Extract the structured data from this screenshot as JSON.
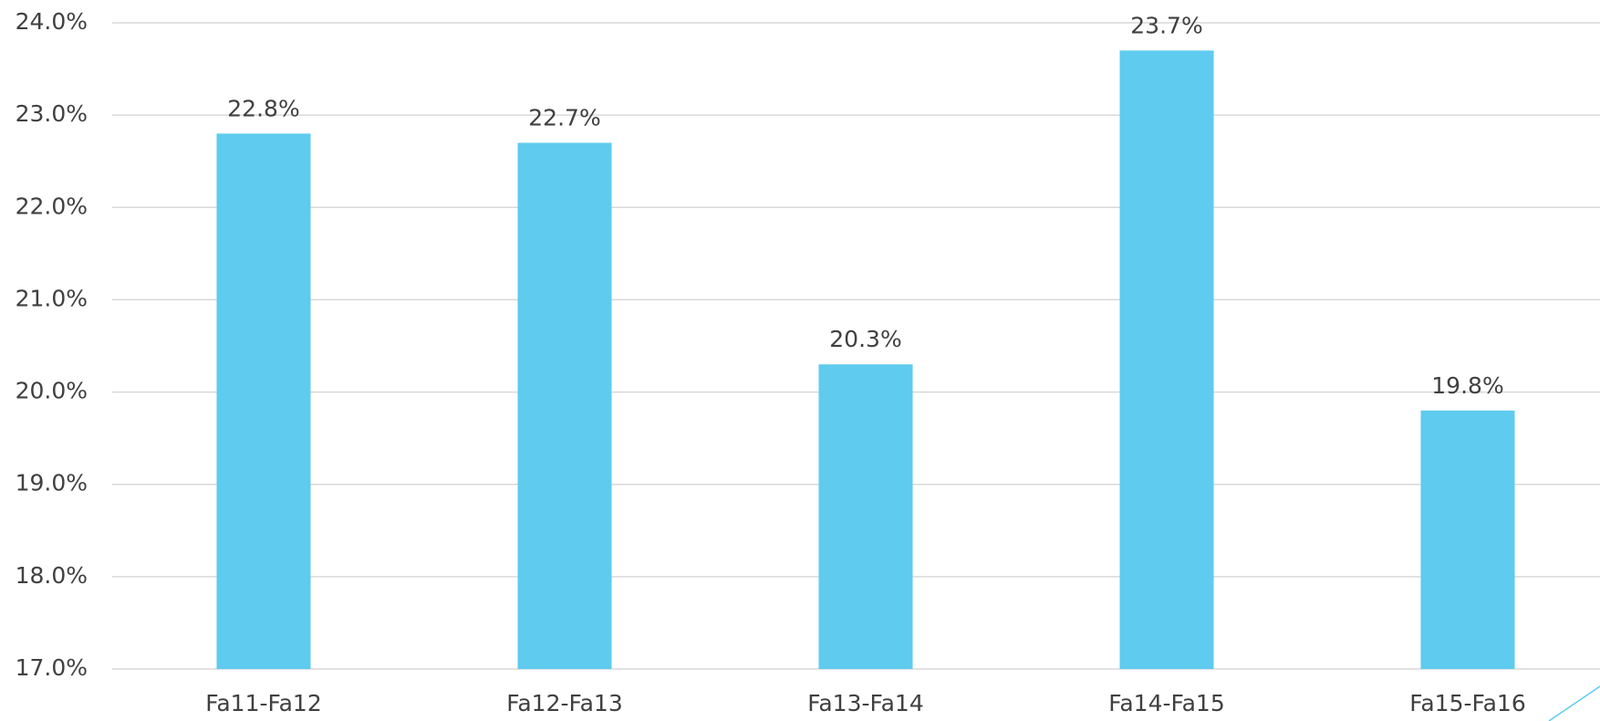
{
  "chart_data": {
    "type": "bar",
    "categories": [
      "Fa11-Fa12",
      "Fa12-Fa13",
      "Fa13-Fa14",
      "Fa14-Fa15",
      "Fa15-Fa16"
    ],
    "values": [
      22.8,
      22.7,
      20.3,
      23.7,
      19.8
    ],
    "value_labels": [
      "22.8%",
      "22.7%",
      "20.3%",
      "23.7%",
      "19.8%"
    ],
    "color": "#5ecbef",
    "ylim": [
      17,
      24
    ],
    "yticks": [
      {
        "value": 17,
        "label": "17.0%"
      },
      {
        "value": 18,
        "label": "18.0%"
      },
      {
        "value": 19,
        "label": "19.0%"
      },
      {
        "value": 20,
        "label": "20.0%"
      },
      {
        "value": 21,
        "label": "21.0%"
      },
      {
        "value": 22,
        "label": "22.0%"
      },
      {
        "value": 23,
        "label": "23.0%"
      },
      {
        "value": 24,
        "label": "24.0%"
      }
    ],
    "grid": true
  }
}
